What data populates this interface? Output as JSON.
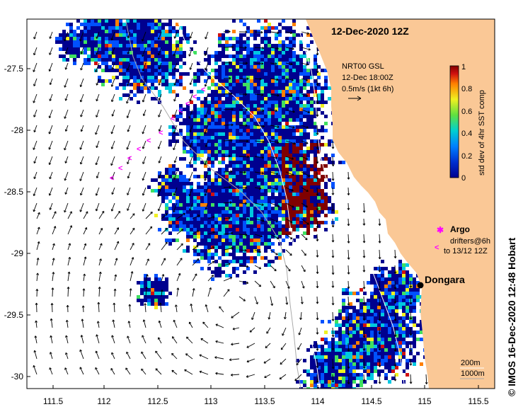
{
  "map": {
    "date_label": "12-Dec-2020 12Z",
    "current_info": {
      "line1": "NRT00 GSL",
      "line2": "12-Dec 18:00Z",
      "line3": "0.5m/s (1kt 6h)"
    },
    "colorbar": {
      "label": "std dev of 4hr SST comp",
      "ticks": [
        "0",
        "0.2",
        "0.4",
        "0.6",
        "0.8",
        "1"
      ]
    },
    "legend": {
      "argo_label": "Argo",
      "drifters_line1": "drifters@6h",
      "drifters_line2": "to 13/12 12Z"
    },
    "place": {
      "name": "Dongara"
    },
    "depth_legend": {
      "line1": "200m",
      "line2": "1000m"
    },
    "credit": "© IMOS 16-Dec-2020 12:48 Hobart",
    "x_ticks": [
      "111.5",
      "112",
      "112.5",
      "113",
      "113.5",
      "114",
      "114.5",
      "115",
      "115.5"
    ],
    "y_ticks": [
      "-27.5",
      "-28",
      "-28.5",
      "-29",
      "-29.5",
      "-30"
    ],
    "colors": {
      "land": "#fac896",
      "colormap": [
        "#00008f",
        "#0050ff",
        "#00c8e0",
        "#40e060",
        "#f0f020",
        "#ff8000",
        "#d01010",
        "#800000"
      ],
      "drifter": "#ff00ff"
    }
  }
}
